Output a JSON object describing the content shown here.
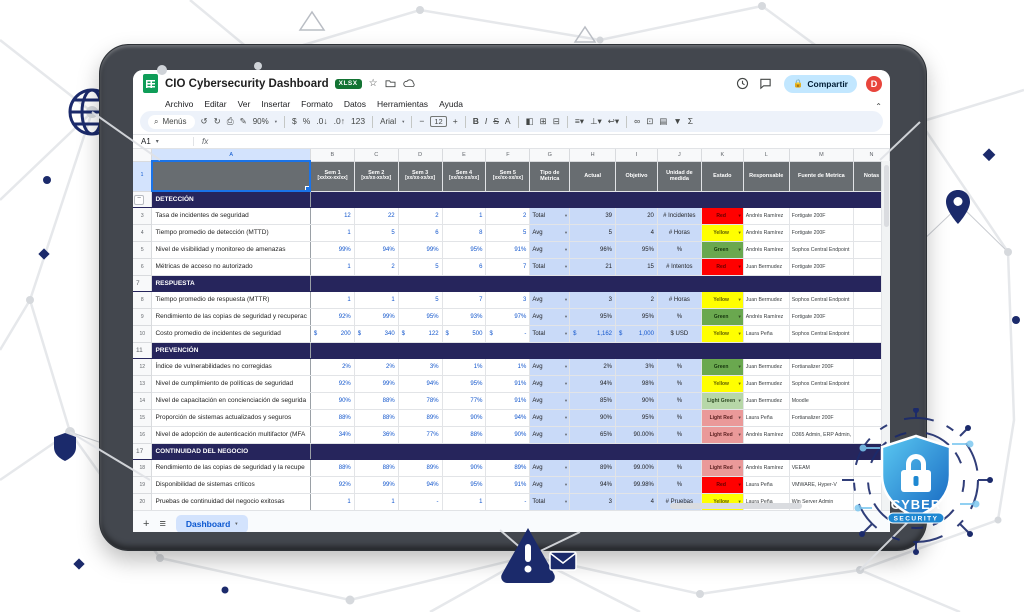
{
  "titlebar": {
    "title": "CIO Cybersecurity Dashboard",
    "file_type": "XLSX",
    "share": "Compartir",
    "avatar": "D"
  },
  "menus": [
    "Archivo",
    "Editar",
    "Ver",
    "Insertar",
    "Formato",
    "Datos",
    "Herramientas",
    "Ayuda"
  ],
  "toolbar": {
    "search_label": "Menús",
    "zoom": "90%",
    "number_toggle": "123",
    "font_name": "Arial",
    "font_size": "12",
    "bold": "B",
    "italic": "I",
    "strike": "S",
    "color": "A",
    "currency": "$",
    "percent": "%"
  },
  "formula_bar": {
    "name_box": "A1",
    "fx": "fx"
  },
  "tabbar": {
    "tab": "Dashboard"
  },
  "sheet": {
    "col_letters": [
      "A",
      "B",
      "C",
      "D",
      "E",
      "F",
      "G",
      "H",
      "I",
      "J",
      "K",
      "L",
      "M",
      "N"
    ],
    "week_headers": [
      "Sem 1",
      "Sem 2",
      "Sem 3",
      "Sem 4",
      "Sem 5"
    ],
    "week_sub": "[xx/xx-xx/xx]",
    "meta_headers": [
      "Tipo de Metrica",
      "Actual",
      "Objetivo",
      "Unidad de medida",
      "Estado",
      "Responsable",
      "Fuente de Metrica",
      "Notas"
    ],
    "status_colors": {
      "Red": {
        "bg": "#ff0000",
        "fg": "#5c0000"
      },
      "Yellow": {
        "bg": "#ffff00",
        "fg": "#5c5c00"
      },
      "Green": {
        "bg": "#6aa84f",
        "fg": "#15340d"
      },
      "Light Green": {
        "bg": "#b7d7a8",
        "fg": "#2d4a22"
      },
      "Light Red": {
        "bg": "#ea9999",
        "fg": "#5b1f1f"
      }
    },
    "rows": [
      {
        "n": 2,
        "kind": "section",
        "label": "DETECCIÓN"
      },
      {
        "n": 3,
        "kind": "data",
        "label": "Tasa de incidentes de seguridad",
        "weeks": [
          "12",
          "22",
          "2",
          "1",
          "2"
        ],
        "type": "Total",
        "actual": "39",
        "objetivo": "20",
        "unidad": "# Incidentes",
        "estado": "Red",
        "responsable": "Andrés Ramírez",
        "fuente": "Fortigate 200F",
        "notas": ""
      },
      {
        "n": 4,
        "kind": "data",
        "label": "Tiempo promedio de detección (MTTD)",
        "weeks": [
          "1",
          "5",
          "6",
          "8",
          "5"
        ],
        "type": "Avg",
        "actual": "5",
        "objetivo": "4",
        "unidad": "# Horas",
        "estado": "Yellow",
        "responsable": "Andrés Ramírez",
        "fuente": "Fortigate 200F",
        "notas": ""
      },
      {
        "n": 5,
        "kind": "data",
        "label": "Nivel de visibilidad y monitoreo de amenazas",
        "weeks": [
          "99%",
          "94%",
          "99%",
          "95%",
          "91%"
        ],
        "type": "Avg",
        "actual": "96%",
        "objetivo": "95%",
        "unidad": "%",
        "estado": "Green",
        "responsable": "Andrés Ramírez",
        "fuente": "Sophos Central Endpoint",
        "notas": ""
      },
      {
        "n": 6,
        "kind": "data",
        "label": "Métricas de acceso no autorizado",
        "weeks": [
          "1",
          "2",
          "5",
          "6",
          "7"
        ],
        "type": "Total",
        "actual": "21",
        "objetivo": "15",
        "unidad": "# Intentos",
        "estado": "Red",
        "responsable": "Juan Bermudez",
        "fuente": "Fortigate 200F",
        "notas": ""
      },
      {
        "n": 7,
        "kind": "section",
        "label": "RESPUESTA"
      },
      {
        "n": 8,
        "kind": "data",
        "label": "Tiempo promedio de respuesta (MTTR)",
        "weeks": [
          "1",
          "1",
          "5",
          "7",
          "3"
        ],
        "type": "Avg",
        "actual": "3",
        "objetivo": "2",
        "unidad": "# Horas",
        "estado": "Yellow",
        "responsable": "Juan Bermudez",
        "fuente": "Sophos Central Endpoint",
        "notas": ""
      },
      {
        "n": 9,
        "kind": "data",
        "label": "Rendimiento de las copias de seguridad y recuperac",
        "weeks": [
          "92%",
          "99%",
          "95%",
          "93%",
          "97%"
        ],
        "type": "Avg",
        "actual": "95%",
        "objetivo": "95%",
        "unidad": "%",
        "estado": "Green",
        "responsable": "Andrés Ramírez",
        "fuente": "Fortigate 200F",
        "notas": ""
      },
      {
        "n": 10,
        "kind": "data",
        "label": "Costo promedio de incidentes de seguridad",
        "weeks": [
          "$ 200",
          "$ 340",
          "$ 122",
          "$ 500",
          "$ -"
        ],
        "type": "Total",
        "actual": "$ 1,162",
        "objetivo": "$ 1,000",
        "unidad": "$ USD",
        "estado": "Yellow",
        "responsable": "Laura Peña",
        "fuente": "Sophos Central Endpoint",
        "notas": ""
      },
      {
        "n": 11,
        "kind": "section",
        "label": "PREVENCIÓN"
      },
      {
        "n": 12,
        "kind": "data",
        "label": "Índice de vulnerabilidades no corregidas",
        "weeks": [
          "2%",
          "2%",
          "3%",
          "1%",
          "1%"
        ],
        "type": "Avg",
        "actual": "2%",
        "objetivo": "3%",
        "unidad": "%",
        "estado": "Green",
        "responsable": "Juan Bermudez",
        "fuente": "Fortianalizer 200F",
        "notas": ""
      },
      {
        "n": 13,
        "kind": "data",
        "label": "Nivel de cumplimiento de políticas de seguridad",
        "weeks": [
          "92%",
          "99%",
          "94%",
          "95%",
          "91%"
        ],
        "type": "Avg",
        "actual": "94%",
        "objetivo": "98%",
        "unidad": "%",
        "estado": "Yellow",
        "responsable": "Juan Bermudez",
        "fuente": "Sophos Central Endpoint",
        "notas": ""
      },
      {
        "n": 14,
        "kind": "data",
        "label": "Nivel de capacitación en concienciación de segurida",
        "weeks": [
          "90%",
          "88%",
          "78%",
          "77%",
          "91%"
        ],
        "type": "Avg",
        "actual": "85%",
        "objetivo": "90%",
        "unidad": "%",
        "estado": "Light Green",
        "responsable": "Juan Bermudez",
        "fuente": "Moodle",
        "notas": ""
      },
      {
        "n": 15,
        "kind": "data",
        "label": "Proporción de sistemas actualizados y seguros",
        "weeks": [
          "88%",
          "88%",
          "89%",
          "90%",
          "94%"
        ],
        "type": "Avg",
        "actual": "90%",
        "objetivo": "95%",
        "unidad": "%",
        "estado": "Light Red",
        "responsable": "Laura Peña",
        "fuente": "Fortianalizer 200F",
        "notas": ""
      },
      {
        "n": 16,
        "kind": "data",
        "label": "Nivel de adopción de autenticación multifactor (MFA",
        "weeks": [
          "34%",
          "36%",
          "77%",
          "88%",
          "90%"
        ],
        "type": "Avg",
        "actual": "65%",
        "objetivo": "90.00%",
        "unidad": "%",
        "estado": "Light Red",
        "responsable": "Andrés Ramírez",
        "fuente": "O365 Admin, ERP Admin,",
        "notas": ""
      },
      {
        "n": 17,
        "kind": "section",
        "label": "CONTINUIDAD DEL NEGOCIO"
      },
      {
        "n": 18,
        "kind": "data",
        "label": "Rendimiento de las copias de seguridad y la recupe",
        "weeks": [
          "88%",
          "88%",
          "89%",
          "90%",
          "89%"
        ],
        "type": "Avg",
        "actual": "89%",
        "objetivo": "99.00%",
        "unidad": "%",
        "estado": "Light Red",
        "responsable": "Andrés Ramírez",
        "fuente": "VEEAM",
        "notas": ""
      },
      {
        "n": 19,
        "kind": "data",
        "label": "Disponibilidad de sistemas críticos",
        "weeks": [
          "92%",
          "99%",
          "94%",
          "95%",
          "91%"
        ],
        "type": "Avg",
        "actual": "94%",
        "objetivo": "99.98%",
        "unidad": "%",
        "estado": "Red",
        "responsable": "Laura Peña",
        "fuente": "VMWARE, Hyper-V",
        "notas": ""
      },
      {
        "n": 20,
        "kind": "data",
        "label": "Pruebas de continuidad del negocio exitosas",
        "weeks": [
          "1",
          "1",
          "-",
          "1",
          "-"
        ],
        "type": "Total",
        "actual": "3",
        "objetivo": "4",
        "unidad": "# Pruebas",
        "estado": "Yellow",
        "responsable": "Laura Peña",
        "fuente": "Win Server Admin",
        "notas": ""
      },
      {
        "n": 21,
        "kind": "empty"
      },
      {
        "n": 22,
        "kind": "empty"
      }
    ]
  },
  "decor": {
    "badge_line1": "CYBER",
    "badge_line2": "SECURITY"
  }
}
